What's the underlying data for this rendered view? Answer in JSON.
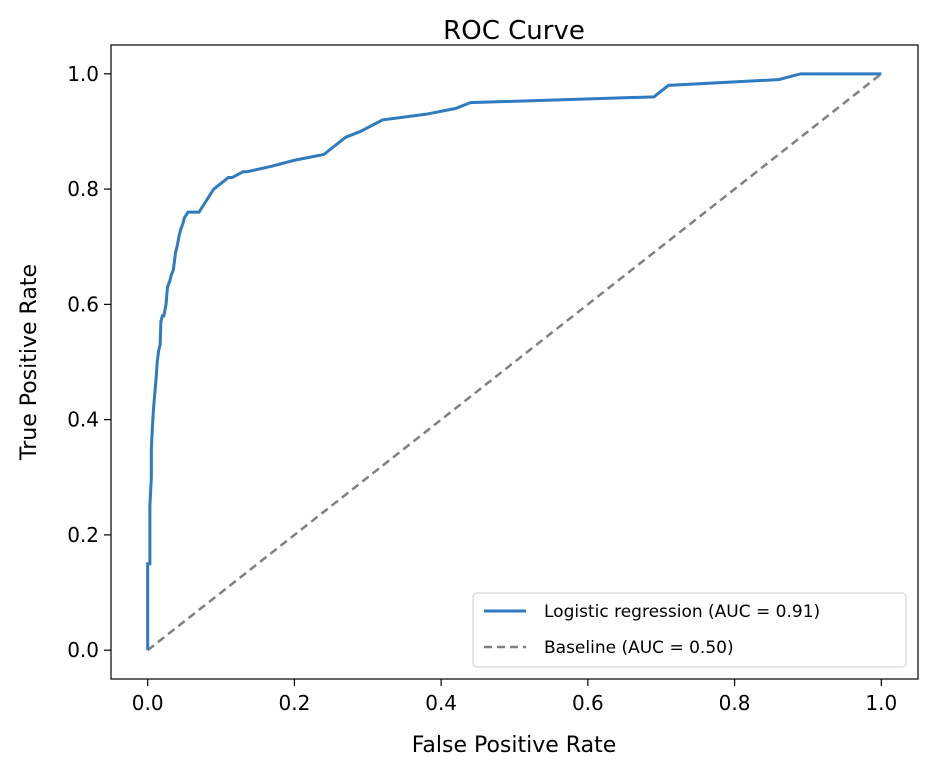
{
  "chart_data": {
    "type": "line",
    "title": "ROC Curve",
    "xlabel": "False Positive Rate",
    "ylabel": "True Positive Rate",
    "xlim": [
      -0.05,
      1.05
    ],
    "ylim": [
      -0.05,
      1.05
    ],
    "xticks": [
      0.0,
      0.2,
      0.4,
      0.6,
      0.8,
      1.0
    ],
    "yticks": [
      0.0,
      0.2,
      0.4,
      0.6,
      0.8,
      1.0
    ],
    "xtick_labels": [
      "0.0",
      "0.2",
      "0.4",
      "0.6",
      "0.8",
      "1.0"
    ],
    "ytick_labels": [
      "0.0",
      "0.2",
      "0.4",
      "0.6",
      "0.8",
      "1.0"
    ],
    "grid": false,
    "legend_position": "bottom-right",
    "series": [
      {
        "name": "Logistic regression (AUC = 0.91)",
        "color": "#2e7bbf",
        "style": "solid",
        "x": [
          0.0,
          0.0,
          0.003,
          0.003,
          0.005,
          0.005,
          0.007,
          0.008,
          0.01,
          0.012,
          0.013,
          0.015,
          0.017,
          0.018,
          0.02,
          0.022,
          0.025,
          0.027,
          0.03,
          0.032,
          0.035,
          0.038,
          0.04,
          0.043,
          0.045,
          0.048,
          0.05,
          0.055,
          0.06,
          0.065,
          0.07,
          0.08,
          0.085,
          0.09,
          0.1,
          0.11,
          0.115,
          0.13,
          0.135,
          0.17,
          0.2,
          0.24,
          0.25,
          0.26,
          0.27,
          0.29,
          0.32,
          0.38,
          0.42,
          0.44,
          0.69,
          0.7,
          0.71,
          0.86,
          0.89,
          1.0
        ],
        "y": [
          0.0,
          0.15,
          0.15,
          0.25,
          0.3,
          0.35,
          0.4,
          0.42,
          0.45,
          0.48,
          0.5,
          0.52,
          0.53,
          0.57,
          0.58,
          0.58,
          0.6,
          0.63,
          0.64,
          0.65,
          0.66,
          0.69,
          0.7,
          0.72,
          0.73,
          0.74,
          0.75,
          0.76,
          0.76,
          0.76,
          0.76,
          0.78,
          0.79,
          0.8,
          0.81,
          0.82,
          0.82,
          0.83,
          0.83,
          0.84,
          0.85,
          0.86,
          0.87,
          0.88,
          0.89,
          0.9,
          0.92,
          0.93,
          0.94,
          0.95,
          0.96,
          0.97,
          0.98,
          0.99,
          1.0,
          1.0
        ]
      },
      {
        "name": "Baseline (AUC = 0.50)",
        "color": "#808080",
        "style": "dashed",
        "x": [
          0.0,
          1.0
        ],
        "y": [
          0.0,
          1.0
        ]
      }
    ]
  }
}
